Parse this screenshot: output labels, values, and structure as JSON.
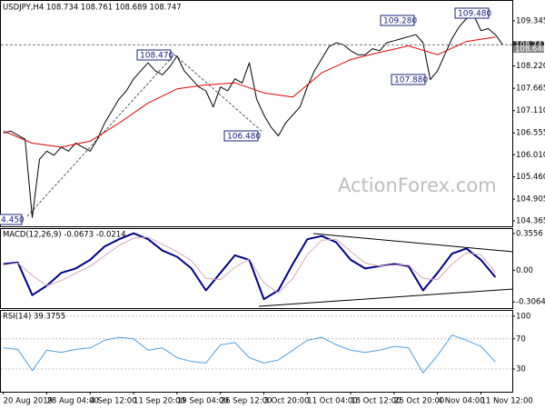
{
  "chart_data": [
    {
      "type": "line",
      "title": "USDJPY,H4 108.734 108.761 108.689 108.747",
      "xlim": [
        -2,
        422
      ],
      "ylim": [
        104.23,
        109.84
      ],
      "yticks": [
        109.345,
        {
          "value": 108.22,
          "label": "108.220"
        },
        107.665,
        {
          "value": 107.11,
          "label": "107.110"
        },
        106.555,
        {
          "value": 106.01,
          "label": "106.010"
        },
        {
          "value": 105.46,
          "label": "105.460"
        },
        104.905,
        104.365
      ],
      "price_markers": [
        108.747,
        {
          "value": 108.64,
          "label": "108.640"
        }
      ],
      "annotations": [
        "4.450",
        "108.470",
        "106.480",
        "109.280",
        "109.480",
        "107.880"
      ],
      "watermark": "ActionForex.com",
      "series": [
        {
          "color": "#000000",
          "x": [
            0,
            6,
            12,
            18,
            24,
            30,
            36,
            42,
            48,
            54,
            60,
            66,
            72,
            78,
            84,
            90,
            96,
            102,
            108,
            114,
            120,
            126,
            132,
            138,
            144,
            150,
            156,
            162,
            168,
            174,
            180,
            186,
            192,
            198,
            204,
            210,
            216,
            222,
            228,
            234,
            240,
            246,
            252,
            258,
            264,
            270,
            276,
            282,
            288,
            294,
            300,
            306,
            312,
            318,
            324,
            330,
            336,
            342,
            348,
            354,
            360,
            366,
            372,
            378,
            384,
            390,
            396,
            402,
            408,
            414
          ],
          "values": [
            106.55,
            106.6,
            106.5,
            106.4,
            104.45,
            105.9,
            106.1,
            106.0,
            106.2,
            106.1,
            106.3,
            106.2,
            106.1,
            106.4,
            106.8,
            107.1,
            107.4,
            107.6,
            107.9,
            108.1,
            108.3,
            108.1,
            108.0,
            108.2,
            108.47,
            108.1,
            107.9,
            107.7,
            107.6,
            107.2,
            107.7,
            107.6,
            107.9,
            107.8,
            108.3,
            107.4,
            107.0,
            106.7,
            106.48,
            106.8,
            107.0,
            107.2,
            107.7,
            108.1,
            108.4,
            108.7,
            108.8,
            108.75,
            108.6,
            108.5,
            108.5,
            108.65,
            108.6,
            108.8,
            108.85,
            108.9,
            108.95,
            109.0,
            108.8,
            107.88,
            108.1,
            108.5,
            108.9,
            109.2,
            109.4,
            109.48,
            109.1,
            109.15,
            109.0,
            108.75
          ]
        },
        {
          "color": "#e00000",
          "x": [
            0,
            24,
            48,
            72,
            96,
            120,
            144,
            168,
            192,
            216,
            240,
            264,
            288,
            312,
            336,
            360,
            384,
            408
          ],
          "values": [
            106.6,
            106.3,
            106.2,
            106.35,
            106.8,
            107.3,
            107.65,
            107.75,
            107.8,
            107.55,
            107.45,
            108.05,
            108.38,
            108.56,
            108.72,
            108.5,
            108.83,
            108.94
          ]
        }
      ]
    },
    {
      "type": "line",
      "title": "MACD(12,26,9) -0.0673 -0.0214",
      "xlim": [
        -2,
        422
      ],
      "ylim": [
        -0.366,
        0.398
      ],
      "yticks": [
        0.3556,
        {
          "value": 0,
          "label": "0.00"
        },
        -0.3064
      ],
      "x": [
        0,
        12,
        24,
        36,
        48,
        60,
        72,
        84,
        96,
        108,
        120,
        132,
        144,
        156,
        168,
        180,
        192,
        204,
        216,
        228,
        240,
        252,
        264,
        276,
        288,
        300,
        312,
        324,
        336,
        348,
        360,
        372,
        384,
        396,
        408
      ],
      "series": [
        {
          "color": "#00008b",
          "width": 2,
          "values": [
            0.06,
            0.076,
            -0.24,
            -0.15,
            -0.025,
            0.017,
            0.1,
            0.23,
            0.3,
            0.357,
            0.3,
            0.19,
            0.13,
            0.017,
            -0.195,
            -0.025,
            0.144,
            0.1,
            -0.28,
            -0.195,
            0.06,
            0.3,
            0.33,
            0.27,
            0.1,
            0.017,
            0.04,
            0.06,
            0.04,
            -0.195,
            -0.025,
            0.16,
            0.21,
            0.1,
            -0.0673
          ]
        },
        {
          "color": "#d7a7b7",
          "width": 1,
          "values": [
            0.05,
            0.07,
            -0.05,
            -0.15,
            -0.1,
            -0.03,
            0.04,
            0.14,
            0.24,
            0.31,
            0.32,
            0.25,
            0.18,
            0.09,
            -0.08,
            -0.09,
            0.03,
            0.11,
            -0.12,
            -0.22,
            -0.08,
            0.15,
            0.29,
            0.3,
            0.18,
            0.07,
            0.04,
            0.05,
            0.05,
            -0.08,
            -0.09,
            0.06,
            0.17,
            0.15,
            -0.0214
          ]
        }
      ]
    },
    {
      "type": "line",
      "title": "RSI(14) 39.3755",
      "xlim": [
        -2,
        422
      ],
      "ylim": [
        0,
        107
      ],
      "grid": true,
      "yticks": [
        100,
        70,
        30
      ],
      "xticks": [
        {
          "value": 0,
          "label": "20 Aug 2019"
        },
        {
          "value": 36,
          "label": "28 Aug 04:00"
        },
        {
          "value": 72,
          "label": "4 Sep 12:00"
        },
        {
          "value": 108,
          "label": "11 Sep 20:00"
        },
        {
          "value": 144,
          "label": "19 Sep 04:00"
        },
        {
          "value": 180,
          "label": "26 Sep 12:00"
        },
        {
          "value": 216,
          "label": "3 Oct 20:00"
        },
        {
          "value": 252,
          "label": "11 Oct 04:00"
        },
        {
          "value": 288,
          "label": "18 Oct 12:00"
        },
        {
          "value": 324,
          "label": "25 Oct 20:00"
        },
        {
          "value": 360,
          "label": "4 Nov 04:00"
        },
        {
          "value": 396,
          "label": "11 Nov 12:00"
        }
      ],
      "x": [
        0,
        12,
        24,
        36,
        48,
        60,
        72,
        84,
        96,
        108,
        120,
        132,
        144,
        156,
        168,
        180,
        192,
        204,
        216,
        228,
        240,
        252,
        264,
        276,
        288,
        300,
        312,
        324,
        336,
        348,
        360,
        372,
        384,
        396,
        408
      ],
      "series": [
        {
          "color": "#4f9fe0",
          "width": 1,
          "values": [
            58,
            56,
            28,
            55,
            52,
            56,
            58,
            68,
            72,
            70,
            55,
            58,
            45,
            40,
            38,
            62,
            65,
            45,
            38,
            42,
            55,
            68,
            72,
            62,
            55,
            52,
            55,
            60,
            58,
            25,
            48,
            75,
            68,
            60,
            39.3755
          ]
        }
      ]
    }
  ]
}
